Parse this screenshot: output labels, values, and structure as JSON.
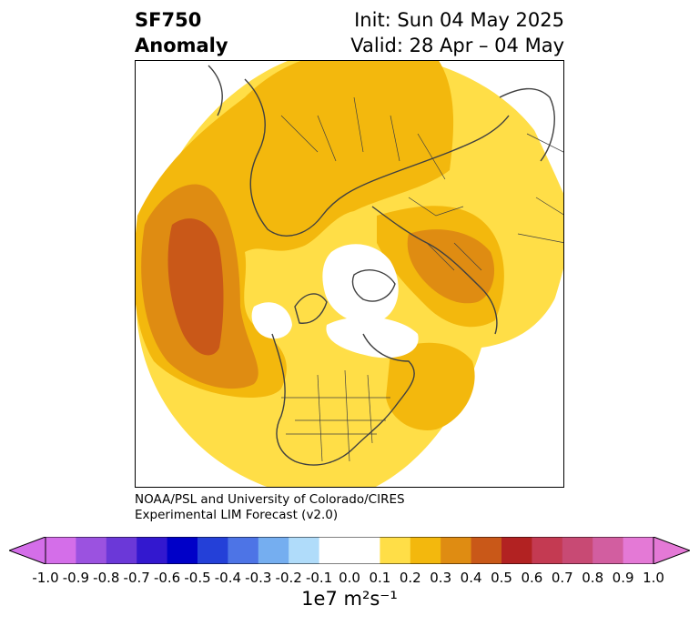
{
  "title": {
    "variable": "SF750",
    "kind": "Anomaly",
    "init": "Init: Sun 04 May 2025",
    "valid": "Valid: 28 Apr – 04 May"
  },
  "credit": {
    "line1": "NOAA/PSL and University of Colorado/CIRES",
    "line2": "Experimental LIM Forecast (v2.0)"
  },
  "colorbar": {
    "unit_label": "1e7 m²s⁻¹",
    "ticks": [
      "-1.0",
      "-0.9",
      "-0.8",
      "-0.7",
      "-0.6",
      "-0.5",
      "-0.4",
      "-0.3",
      "-0.2",
      "-0.1",
      "0.0",
      "0.1",
      "0.2",
      "0.3",
      "0.4",
      "0.5",
      "0.6",
      "0.7",
      "0.8",
      "0.9",
      "1.0"
    ],
    "colors": [
      "#d46ee9",
      "#9b52e0",
      "#6b38d8",
      "#3318cf",
      "#0000c8",
      "#2440d8",
      "#4d74e6",
      "#75aef0",
      "#b0dcfa",
      "#ffffff",
      "#ffffff",
      "#ffde47",
      "#f3b80d",
      "#df8c12",
      "#c95818",
      "#b22222",
      "#c43a52",
      "#c84a74",
      "#d25ea0",
      "#e479d6"
    ],
    "extend_min_color": "#d46ee9",
    "extend_max_color": "#e479d6"
  },
  "map": {
    "projection": "north-polar-stereographic",
    "field": "SF750 anomaly",
    "fill_colors": {
      "level_0_1": "#ffde47",
      "level_0_2": "#f3b80d",
      "level_0_3": "#df8c12",
      "level_0_4": "#c95818",
      "neutral": "#ffffff"
    },
    "coastline_color": "#404040"
  }
}
